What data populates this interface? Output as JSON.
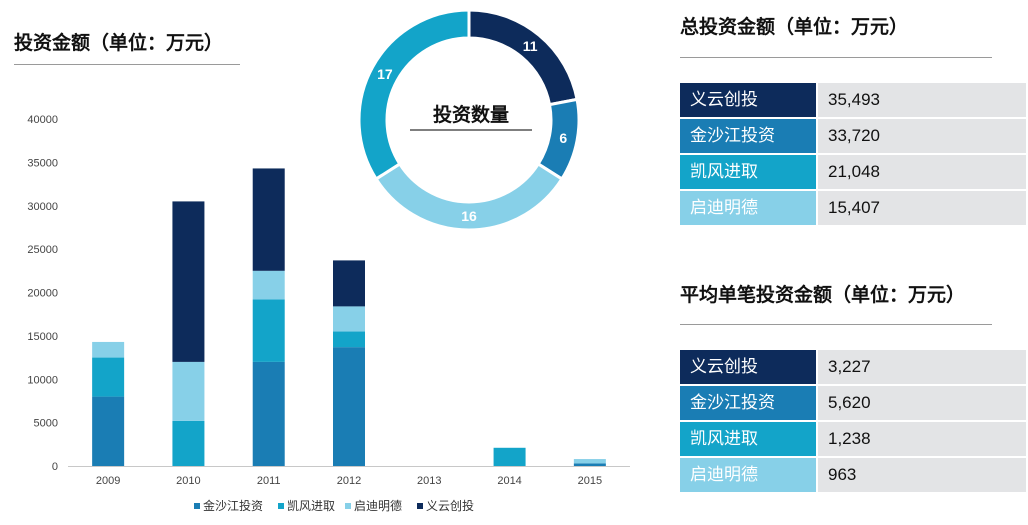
{
  "left_title": "投资金额（单位：万元）",
  "donut_title": "投资数量",
  "total_title": "总投资金额（单位：万元）",
  "avg_title": "平均单笔投资金额（单位：万元）",
  "colors": {
    "金沙江投资": "#1a7db4",
    "凯风进取": "#13a4c9",
    "启迪明德": "#87d0e8",
    "义云创投": "#0d2b5b"
  },
  "chart_data": [
    {
      "type": "bar",
      "stacked": true,
      "categories": [
        "2009",
        "2010",
        "2011",
        "2012",
        "2013",
        "2014",
        "2015"
      ],
      "ylim": [
        0,
        40000
      ],
      "yticks": [
        0,
        5000,
        10000,
        15000,
        20000,
        25000,
        30000,
        35000,
        40000
      ],
      "series": [
        {
          "name": "金沙江投资",
          "values": [
            8000,
            0,
            12000,
            13700,
            0,
            0,
            300
          ]
        },
        {
          "name": "凯风进取",
          "values": [
            4500,
            5200,
            7200,
            1800,
            0,
            2100,
            0
          ]
        },
        {
          "name": "启迪明德",
          "values": [
            1800,
            6800,
            3300,
            2900,
            0,
            0,
            500
          ]
        },
        {
          "name": "义云创投",
          "values": [
            0,
            18500,
            11800,
            5300,
            0,
            0,
            0
          ]
        }
      ],
      "legend_position": "bottom"
    },
    {
      "type": "pie",
      "donut": true,
      "title": "投资数量",
      "slices": [
        {
          "name": "义云创投",
          "value": 11
        },
        {
          "name": "金沙江投资",
          "value": 6
        },
        {
          "name": "启迪明德",
          "value": 16
        },
        {
          "name": "凯风进取",
          "value": 17
        }
      ]
    },
    {
      "type": "table",
      "title": "总投资金额（单位：万元）",
      "rows": [
        {
          "name": "义云创投",
          "value": "35,493"
        },
        {
          "name": "金沙江投资",
          "value": "33,720"
        },
        {
          "name": "凯风进取",
          "value": "21,048"
        },
        {
          "name": "启迪明德",
          "value": "15,407"
        }
      ]
    },
    {
      "type": "table",
      "title": "平均单笔投资金额（单位：万元）",
      "rows": [
        {
          "name": "义云创投",
          "value": "3,227"
        },
        {
          "name": "金沙江投资",
          "value": "5,620"
        },
        {
          "name": "凯风进取",
          "value": "1,238"
        },
        {
          "name": "启迪明德",
          "value": "963"
        }
      ]
    }
  ]
}
